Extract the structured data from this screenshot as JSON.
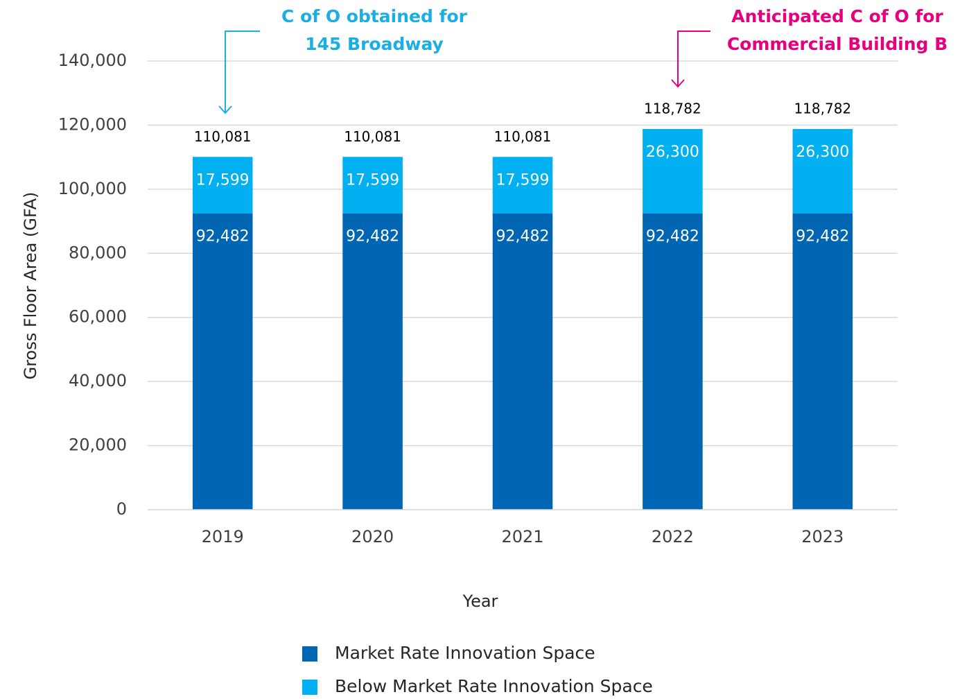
{
  "chart_data": {
    "type": "stacked_bar",
    "categories": [
      "2019",
      "2020",
      "2021",
      "2022",
      "2023"
    ],
    "series": [
      {
        "name": "Market Rate Innovation Space",
        "color": "#0066b3",
        "values": [
          92482,
          92482,
          92482,
          92482,
          92482
        ],
        "value_labels": [
          "92,482",
          "92,482",
          "92,482",
          "92,482",
          "92,482"
        ]
      },
      {
        "name": "Below Market Rate Innovation Space",
        "color": "#00b0f0",
        "values": [
          17599,
          17599,
          17599,
          26300,
          26300
        ],
        "value_labels": [
          "17,599",
          "17,599",
          "17,599",
          "26,300",
          "26,300"
        ]
      }
    ],
    "total_labels": [
      "110,081",
      "110,081",
      "110,081",
      "118,782",
      "118,782"
    ],
    "x_label": "Year",
    "y_label": "Gross Floor Area (GFA)",
    "ylim": [
      0,
      140000
    ],
    "yticks": [
      0,
      {
        "value": 20000,
        "label": "20,000"
      },
      {
        "value": 40000,
        "label": "40,000"
      },
      {
        "value": 60000,
        "label": "60,000"
      },
      {
        "value": 80000,
        "label": "80,000"
      },
      {
        "value": 100000,
        "label": "100,000"
      },
      {
        "value": 120000,
        "label": "120,000"
      },
      {
        "value": 140000,
        "label": "140,000"
      }
    ],
    "grid": true,
    "annotations": [
      {
        "lines": [
          "C of O obtained for",
          "145 Broadway"
        ],
        "color": "#1aaee5"
      },
      {
        "lines": [
          "Anticipated C of O for",
          "Commercial Building B"
        ],
        "color": "#e6007e"
      }
    ]
  }
}
